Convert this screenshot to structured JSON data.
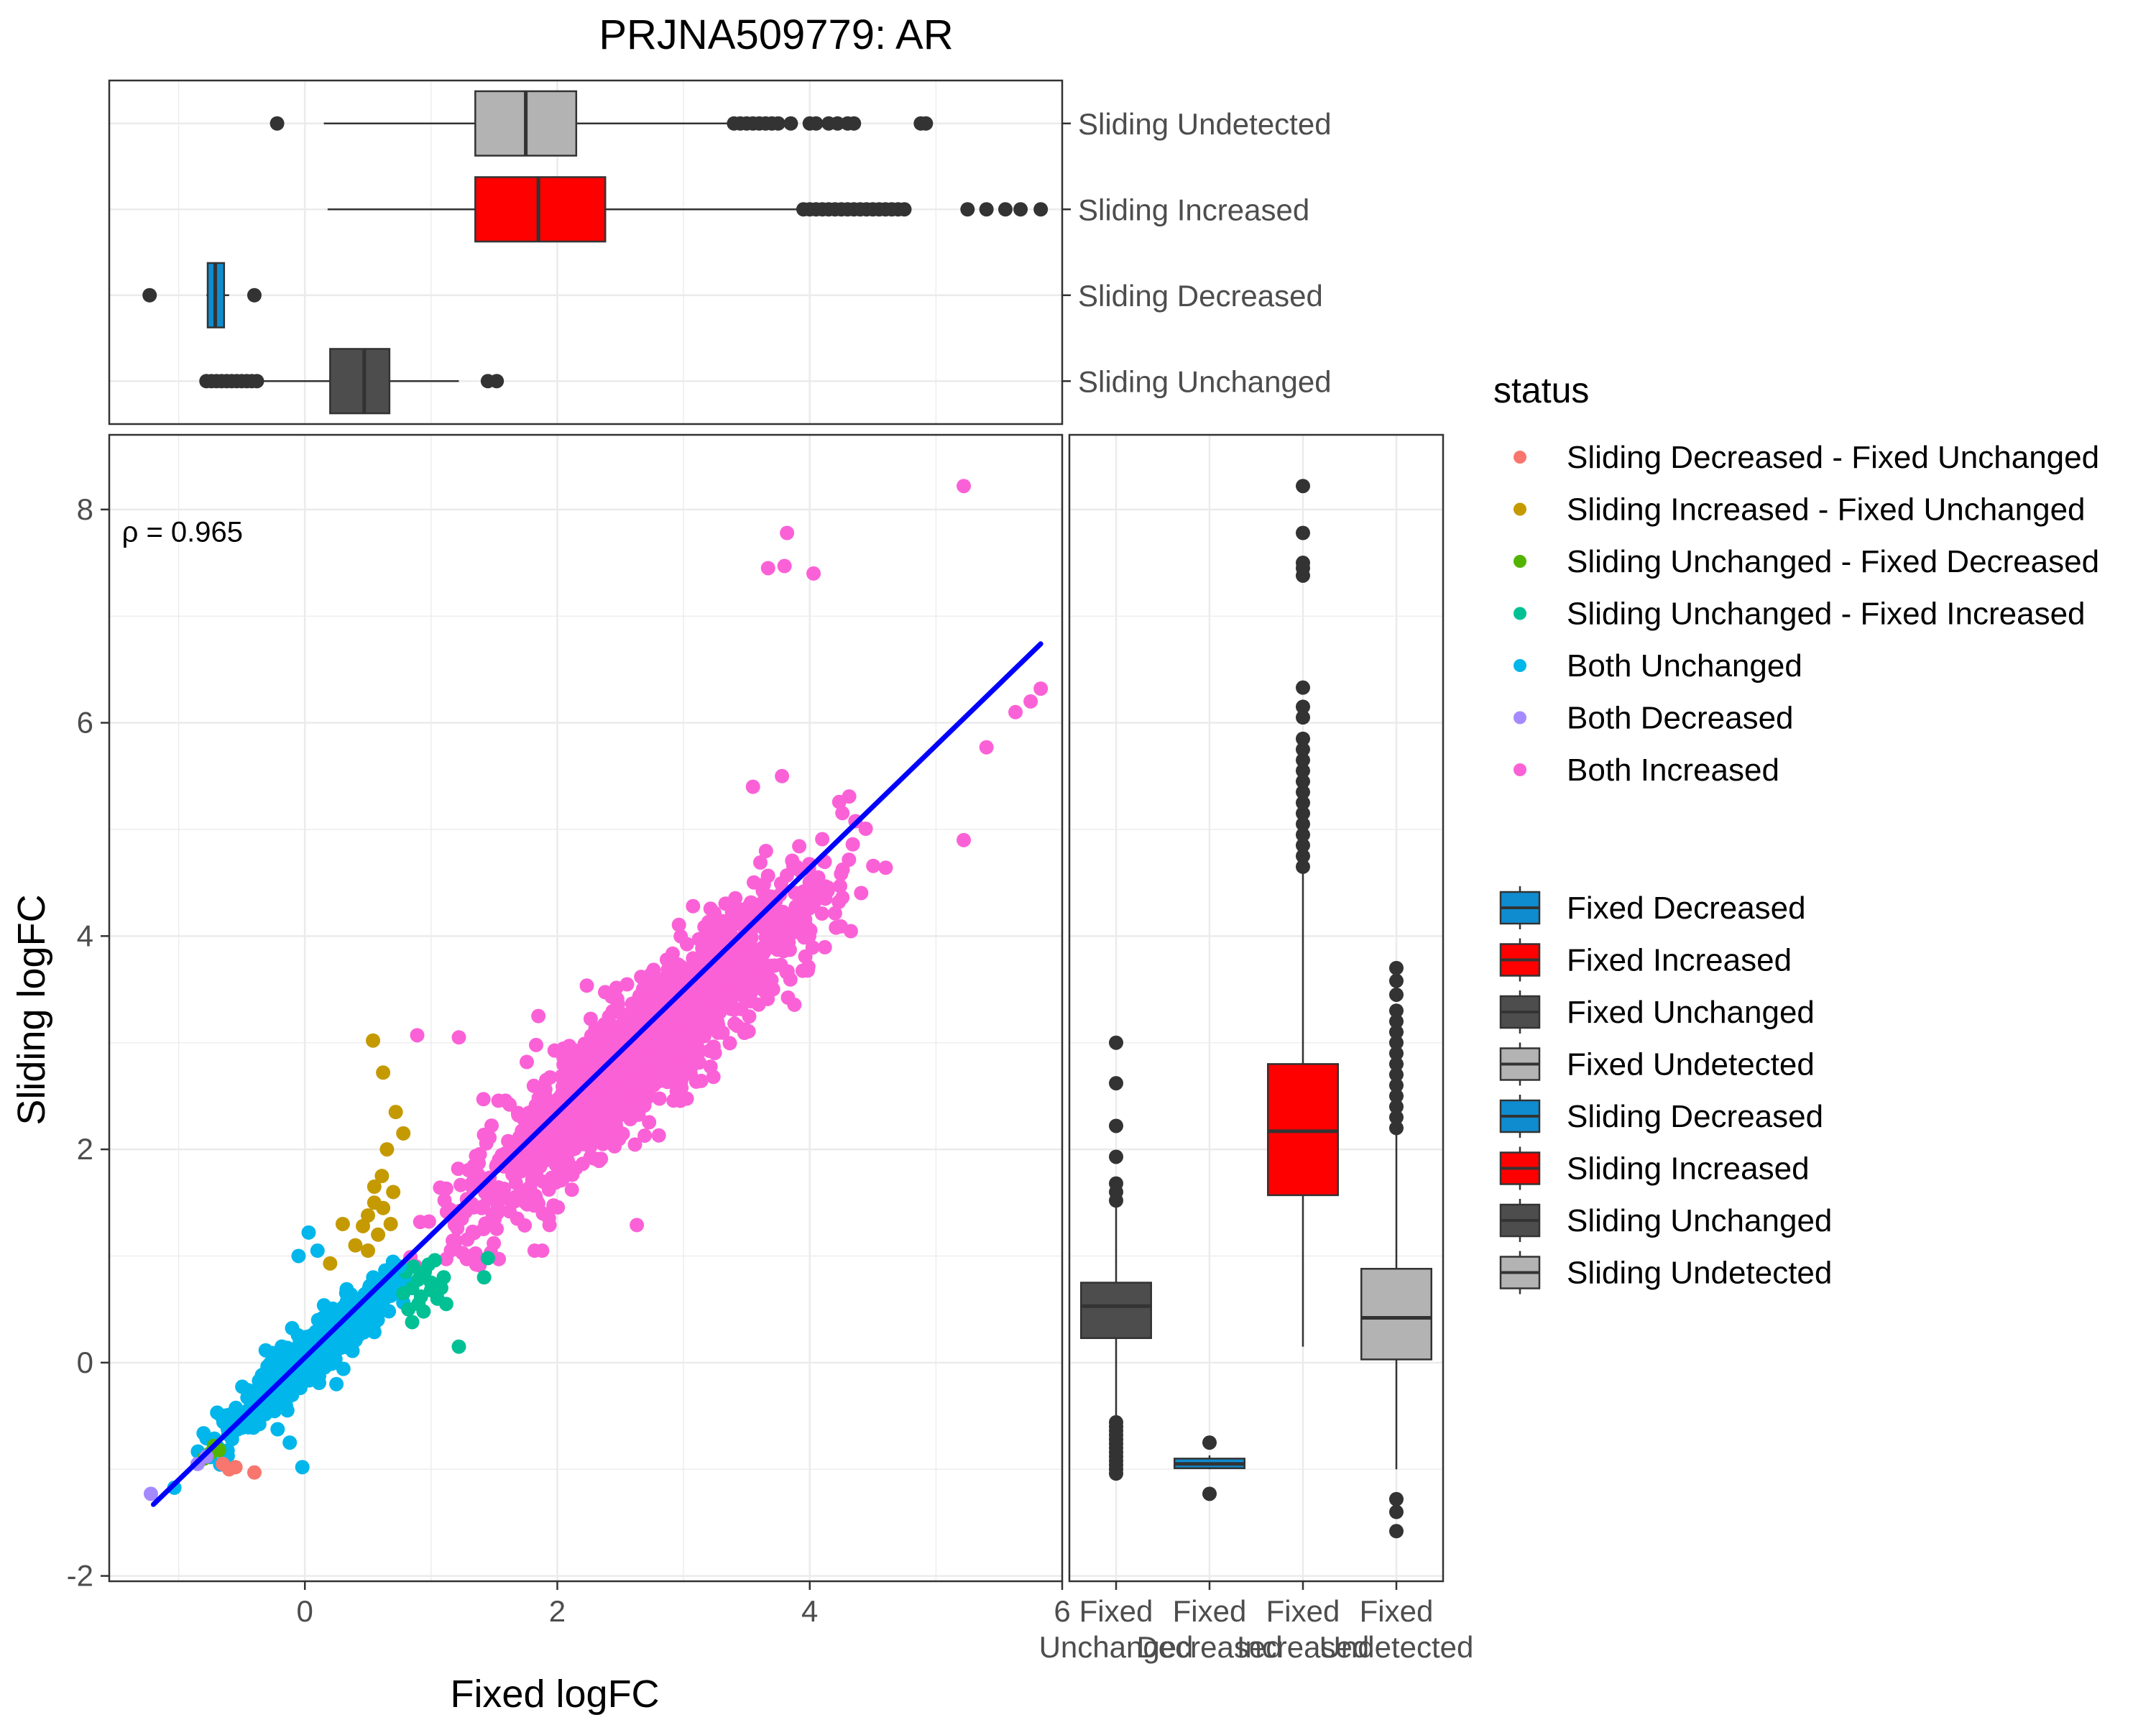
{
  "chart_data": {
    "type": "scatter",
    "title": "PRJNA509779: AR",
    "xlabel": "Fixed logFC",
    "ylabel": "Sliding logFC",
    "xlim": [
      -1.55,
      6.0
    ],
    "ylim": [
      -2.05,
      8.7
    ],
    "x_ticks": [
      "0",
      "2",
      "4",
      "6"
    ],
    "y_ticks": [
      "-2",
      "0",
      "2",
      "4",
      "6",
      "8"
    ],
    "grid": true,
    "annotation": {
      "symbol": "ρ",
      "text": " = 0.965",
      "x": -1.45,
      "y": 7.7
    },
    "regression_line": {
      "color": "#0000FF",
      "x0": -1.2,
      "y0": -1.33,
      "x1": 5.83,
      "y1": 6.74
    },
    "status_legend_title": "status",
    "status_legend": [
      {
        "name": "Sliding Decreased - Fixed Unchanged",
        "color": "#F8766D"
      },
      {
        "name": "Sliding Increased - Fixed Unchanged",
        "color": "#C49A00"
      },
      {
        "name": "Sliding Unchanged - Fixed Decreased",
        "color": "#53B400"
      },
      {
        "name": "Sliding Unchanged - Fixed Increased",
        "color": "#00C094"
      },
      {
        "name": "Both Unchanged",
        "color": "#00B6EB"
      },
      {
        "name": "Both Decreased",
        "color": "#A58AFF"
      },
      {
        "name": "Both Increased",
        "color": "#FB61D7"
      }
    ],
    "box_legend": [
      {
        "name": "Fixed Decreased",
        "color": "#0E8CCF"
      },
      {
        "name": "Fixed Increased",
        "color": "#FF0000"
      },
      {
        "name": "Fixed Unchanged",
        "color": "#4D4D4D"
      },
      {
        "name": "Fixed Undetected",
        "color": "#B3B3B3"
      },
      {
        "name": "Sliding Decreased",
        "color": "#0E8CCF"
      },
      {
        "name": "Sliding Increased",
        "color": "#FF0000"
      },
      {
        "name": "Sliding Unchanged",
        "color": "#4D4D4D"
      },
      {
        "name": "Sliding Undetected",
        "color": "#B3B3B3"
      }
    ],
    "clusters": [
      {
        "status": "Both Increased",
        "n": 1500,
        "x_range": [
          0.7,
          4.7
        ],
        "slope": 1.05,
        "intercept": 0.12,
        "spread": 0.32
      },
      {
        "status": "Both Unchanged",
        "n": 600,
        "x_range": [
          -0.9,
          1.0
        ],
        "slope": 1.0,
        "intercept": 0.02,
        "spread": 0.13
      }
    ],
    "points": [
      {
        "status": "Both Increased",
        "x": 5.22,
        "y": 8.22
      },
      {
        "status": "Both Increased",
        "x": 3.82,
        "y": 7.78
      },
      {
        "status": "Both Increased",
        "x": 3.67,
        "y": 7.45
      },
      {
        "status": "Both Increased",
        "x": 3.8,
        "y": 7.47
      },
      {
        "status": "Both Increased",
        "x": 4.03,
        "y": 7.4
      },
      {
        "status": "Both Increased",
        "x": 5.83,
        "y": 6.32
      },
      {
        "status": "Both Increased",
        "x": 5.63,
        "y": 6.1
      },
      {
        "status": "Both Increased",
        "x": 5.75,
        "y": 6.2
      },
      {
        "status": "Both Increased",
        "x": 5.4,
        "y": 5.77
      },
      {
        "status": "Both Increased",
        "x": 5.22,
        "y": 4.9
      },
      {
        "status": "Both Increased",
        "x": 2.63,
        "y": 1.29
      },
      {
        "status": "Both Increased",
        "x": 1.88,
        "y": 1.05
      },
      {
        "status": "Both Increased",
        "x": 1.82,
        "y": 1.05
      },
      {
        "status": "Both Increased",
        "x": 3.78,
        "y": 5.5
      },
      {
        "status": "Both Increased",
        "x": 3.55,
        "y": 5.4
      },
      {
        "status": "Both Increased",
        "x": 1.22,
        "y": 3.05
      },
      {
        "status": "Both Increased",
        "x": 0.89,
        "y": 3.07
      },
      {
        "status": "Both Increased",
        "x": 1.85,
        "y": 3.25
      },
      {
        "status": "Sliding Increased - Fixed Unchanged",
        "x": 0.54,
        "y": 3.02
      },
      {
        "status": "Sliding Increased - Fixed Unchanged",
        "x": 0.62,
        "y": 2.72
      },
      {
        "status": "Sliding Increased - Fixed Unchanged",
        "x": 0.72,
        "y": 2.35
      },
      {
        "status": "Sliding Increased - Fixed Unchanged",
        "x": 0.78,
        "y": 2.15
      },
      {
        "status": "Sliding Increased - Fixed Unchanged",
        "x": 0.65,
        "y": 2.0
      },
      {
        "status": "Sliding Increased - Fixed Unchanged",
        "x": 0.61,
        "y": 1.75
      },
      {
        "status": "Sliding Increased - Fixed Unchanged",
        "x": 0.55,
        "y": 1.5
      },
      {
        "status": "Sliding Increased - Fixed Unchanged",
        "x": 0.5,
        "y": 1.38
      },
      {
        "status": "Sliding Increased - Fixed Unchanged",
        "x": 0.62,
        "y": 1.45
      },
      {
        "status": "Sliding Increased - Fixed Unchanged",
        "x": 0.7,
        "y": 1.6
      },
      {
        "status": "Sliding Increased - Fixed Unchanged",
        "x": 0.46,
        "y": 1.28
      },
      {
        "status": "Sliding Increased - Fixed Unchanged",
        "x": 0.3,
        "y": 1.3
      },
      {
        "status": "Sliding Increased - Fixed Unchanged",
        "x": 0.58,
        "y": 1.2
      },
      {
        "status": "Sliding Increased - Fixed Unchanged",
        "x": 0.68,
        "y": 1.3
      },
      {
        "status": "Sliding Increased - Fixed Unchanged",
        "x": 0.4,
        "y": 1.1
      },
      {
        "status": "Sliding Increased - Fixed Unchanged",
        "x": 0.2,
        "y": 0.93
      },
      {
        "status": "Sliding Increased - Fixed Unchanged",
        "x": 0.5,
        "y": 1.05
      },
      {
        "status": "Sliding Increased - Fixed Unchanged",
        "x": 0.55,
        "y": 1.65
      },
      {
        "status": "Sliding Unchanged - Fixed Increased",
        "x": 0.8,
        "y": 0.85
      },
      {
        "status": "Sliding Unchanged - Fixed Increased",
        "x": 0.85,
        "y": 0.7
      },
      {
        "status": "Sliding Unchanged - Fixed Increased",
        "x": 0.92,
        "y": 0.62
      },
      {
        "status": "Sliding Unchanged - Fixed Increased",
        "x": 0.9,
        "y": 0.55
      },
      {
        "status": "Sliding Unchanged - Fixed Increased",
        "x": 1.0,
        "y": 0.75
      },
      {
        "status": "Sliding Unchanged - Fixed Increased",
        "x": 1.05,
        "y": 0.6
      },
      {
        "status": "Sliding Unchanged - Fixed Increased",
        "x": 0.95,
        "y": 0.85
      },
      {
        "status": "Sliding Unchanged - Fixed Increased",
        "x": 0.78,
        "y": 0.65
      },
      {
        "status": "Sliding Unchanged - Fixed Increased",
        "x": 1.1,
        "y": 0.8
      },
      {
        "status": "Sliding Unchanged - Fixed Increased",
        "x": 1.12,
        "y": 0.55
      },
      {
        "status": "Sliding Unchanged - Fixed Increased",
        "x": 0.86,
        "y": 0.9
      },
      {
        "status": "Sliding Unchanged - Fixed Increased",
        "x": 0.9,
        "y": 0.78
      },
      {
        "status": "Sliding Unchanged - Fixed Increased",
        "x": 1.0,
        "y": 0.68
      },
      {
        "status": "Sliding Unchanged - Fixed Increased",
        "x": 0.82,
        "y": 0.5
      },
      {
        "status": "Sliding Unchanged - Fixed Increased",
        "x": 0.98,
        "y": 0.92
      },
      {
        "status": "Sliding Unchanged - Fixed Increased",
        "x": 0.94,
        "y": 0.48
      },
      {
        "status": "Sliding Unchanged - Fixed Increased",
        "x": 1.45,
        "y": 0.98
      },
      {
        "status": "Sliding Unchanged - Fixed Increased",
        "x": 1.42,
        "y": 0.8
      },
      {
        "status": "Sliding Unchanged - Fixed Increased",
        "x": 1.22,
        "y": 0.15
      },
      {
        "status": "Sliding Unchanged - Fixed Increased",
        "x": 0.85,
        "y": 0.38
      },
      {
        "status": "Sliding Unchanged - Fixed Increased",
        "x": 1.03,
        "y": 0.96
      },
      {
        "status": "Sliding Unchanged - Fixed Increased",
        "x": 1.08,
        "y": 0.7
      },
      {
        "status": "Both Unchanged",
        "x": 0.03,
        "y": 1.22
      },
      {
        "status": "Both Unchanged",
        "x": 0.1,
        "y": 1.05
      },
      {
        "status": "Both Unchanged",
        "x": -0.05,
        "y": 1.0
      },
      {
        "status": "Both Unchanged",
        "x": -0.02,
        "y": -0.98
      },
      {
        "status": "Both Unchanged",
        "x": -0.12,
        "y": -0.75
      },
      {
        "status": "Both Unchanged",
        "x": 0.75,
        "y": 0.9
      },
      {
        "status": "Sliding Decreased - Fixed Unchanged",
        "x": -0.6,
        "y": -1.0
      },
      {
        "status": "Sliding Decreased - Fixed Unchanged",
        "x": -0.55,
        "y": -0.98
      },
      {
        "status": "Sliding Decreased - Fixed Unchanged",
        "x": -0.4,
        "y": -1.03
      },
      {
        "status": "Sliding Decreased - Fixed Unchanged",
        "x": -0.65,
        "y": -0.95
      },
      {
        "status": "Sliding Unchanged - Fixed Decreased",
        "x": -0.72,
        "y": -0.78
      },
      {
        "status": "Sliding Unchanged - Fixed Decreased",
        "x": -0.75,
        "y": -0.85
      },
      {
        "status": "Sliding Unchanged - Fixed Decreased",
        "x": -0.8,
        "y": -0.9
      },
      {
        "status": "Sliding Unchanged - Fixed Decreased",
        "x": -0.68,
        "y": -0.82
      },
      {
        "status": "Both Decreased",
        "x": -1.22,
        "y": -1.23
      },
      {
        "status": "Both Decreased",
        "x": -0.85,
        "y": -0.95
      },
      {
        "status": "Both Decreased",
        "x": -0.78,
        "y": -0.88
      }
    ],
    "top_boxplot": {
      "value_axis": "Fixed logFC",
      "categories": [
        "Sliding Undetected",
        "Sliding Increased",
        "Sliding Decreased",
        "Sliding Unchanged"
      ],
      "boxes": [
        {
          "name": "Sliding Undetected",
          "color": "#B3B3B3",
          "min": 0.15,
          "q1": 1.35,
          "median": 1.75,
          "q3": 2.15,
          "max": 3.4,
          "outliers": [
            -0.22,
            3.4,
            3.45,
            3.5,
            3.55,
            3.6,
            3.65,
            3.7,
            3.75,
            3.85,
            4.0,
            4.05,
            4.15,
            4.22,
            4.3,
            4.35,
            4.88,
            4.92
          ]
        },
        {
          "name": "Sliding Increased",
          "color": "#FF0000",
          "min": 0.18,
          "q1": 1.35,
          "median": 1.85,
          "q3": 2.38,
          "max": 3.95,
          "outliers": [
            3.95,
            4.0,
            4.05,
            4.1,
            4.15,
            4.2,
            4.25,
            4.3,
            4.35,
            4.4,
            4.45,
            4.5,
            4.55,
            4.6,
            4.65,
            4.7,
            4.75,
            5.25,
            5.4,
            5.55,
            5.67,
            5.83
          ]
        },
        {
          "name": "Sliding Decreased",
          "color": "#0E8CCF",
          "min": -0.78,
          "q1": -0.77,
          "median": -0.71,
          "q3": -0.64,
          "max": -0.6,
          "outliers": [
            -1.23,
            -0.4
          ]
        },
        {
          "name": "Sliding Unchanged",
          "color": "#4D4D4D",
          "min": -0.6,
          "q1": 0.2,
          "median": 0.47,
          "q3": 0.67,
          "max": 1.22,
          "outliers": [
            -0.78,
            -0.74,
            -0.7,
            -0.66,
            -0.62,
            -0.58,
            -0.54,
            -0.5,
            -0.46,
            -0.42,
            -0.38,
            1.45,
            1.52
          ]
        }
      ]
    },
    "right_boxplot": {
      "value_axis": "Sliding logFC",
      "categories": [
        "Fixed Unchanged",
        "Fixed Decreased",
        "Fixed Increased",
        "Fixed Undetected"
      ],
      "category_labels": [
        {
          "line1": "Fixed",
          "line2": "Unchanged"
        },
        {
          "line1": "Fixed",
          "line2": "Decreased"
        },
        {
          "line1": "Fixed",
          "line2": "Increased"
        },
        {
          "line1": "Fixed",
          "line2": "Undetected"
        }
      ],
      "boxes": [
        {
          "name": "Fixed Unchanged",
          "color": "#4D4D4D",
          "min": -0.55,
          "q1": 0.23,
          "median": 0.53,
          "q3": 0.75,
          "max": 1.5,
          "outliers": [
            -1.04,
            -1.0,
            -0.96,
            -0.92,
            -0.88,
            -0.84,
            -0.8,
            -0.76,
            -0.72,
            -0.68,
            -0.64,
            -0.6,
            -0.56,
            1.52,
            1.6,
            1.68,
            1.93,
            2.22,
            2.62,
            3.0
          ]
        },
        {
          "name": "Fixed Decreased",
          "color": "#0E8CCF",
          "min": -1.0,
          "q1": -0.99,
          "median": -0.95,
          "q3": -0.9,
          "max": -0.87,
          "outliers": [
            -0.75,
            -1.23
          ]
        },
        {
          "name": "Fixed Increased",
          "color": "#FF0000",
          "min": 0.15,
          "q1": 1.57,
          "median": 2.17,
          "q3": 2.8,
          "max": 4.6,
          "outliers": [
            4.65,
            4.75,
            4.85,
            4.95,
            5.05,
            5.15,
            5.25,
            5.35,
            5.45,
            5.55,
            5.65,
            5.75,
            5.85,
            6.05,
            6.15,
            6.33,
            7.38,
            7.45,
            7.5,
            7.78,
            8.22
          ]
        },
        {
          "name": "Fixed Undetected",
          "color": "#B3B3B3",
          "min": -1.0,
          "q1": 0.03,
          "median": 0.42,
          "q3": 0.88,
          "max": 2.15,
          "outliers": [
            -1.28,
            -1.4,
            -1.58,
            2.2,
            2.3,
            2.4,
            2.5,
            2.6,
            2.7,
            2.8,
            2.9,
            3.0,
            3.1,
            3.2,
            3.3,
            3.45,
            3.58,
            3.7
          ]
        }
      ]
    }
  }
}
